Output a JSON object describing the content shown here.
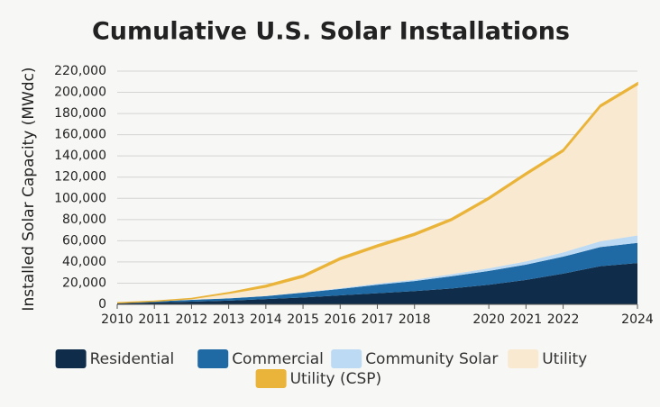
{
  "chart_data": {
    "type": "stacked_area",
    "title": "Cumulative U.S. Solar Installations",
    "y_label": "Installed Solar Capacity (MWdc)",
    "x": [
      2010,
      2011,
      2012,
      2013,
      2014,
      2015,
      2016,
      2017,
      2018,
      2019,
      2020,
      2021,
      2022,
      2023,
      2024
    ],
    "xlim": [
      2010,
      2024
    ],
    "xticks": [
      2010,
      2011,
      2012,
      2013,
      2014,
      2015,
      2016,
      2017,
      2018,
      2020,
      2021,
      2022,
      2024
    ],
    "ylim": [
      0,
      220000
    ],
    "yticks": [
      0,
      {
        "value": 20000,
        "label": "20,000"
      },
      {
        "value": 40000,
        "label": "40,000"
      },
      {
        "value": 60000,
        "label": "60,000"
      },
      {
        "value": 80000,
        "label": "80,000"
      },
      {
        "value": 100000,
        "label": "100,000"
      },
      {
        "value": 120000,
        "label": "120,000"
      },
      {
        "value": 140000,
        "label": "140,000"
      },
      {
        "value": 160000,
        "label": "160,000"
      },
      {
        "value": 180000,
        "label": "180,000"
      },
      {
        "value": 200000,
        "label": "200,000"
      },
      {
        "value": 220000,
        "label": "220,000"
      }
    ],
    "grid": true,
    "series": [
      {
        "name": "Residential",
        "color": "#0f2d4a",
        "values": [
          1000,
          1800,
          2500,
          3500,
          5000,
          6500,
          8500,
          10500,
          12500,
          15000,
          18500,
          23000,
          29000,
          36000,
          39000
        ]
      },
      {
        "name": "Commercial",
        "color": "#1f6aa5",
        "values": [
          500,
          1000,
          1700,
          2100,
          2800,
          4500,
          6000,
          8000,
          9500,
          11500,
          13000,
          14500,
          16000,
          18000,
          19000
        ]
      },
      {
        "name": "Community Solar",
        "color": "#bcdaf3",
        "values": [
          0,
          0,
          100,
          200,
          200,
          300,
          700,
          1000,
          1300,
          2000,
          2500,
          3000,
          4000,
          5500,
          7000
        ]
      },
      {
        "name": "Utility",
        "color": "#f9e9d0",
        "values": [
          0,
          200,
          1100,
          4700,
          8300,
          14400,
          27000,
          34700,
          41900,
          50700,
          65200,
          81700,
          95200,
          126700,
          142200
        ]
      },
      {
        "name": "Utility (CSP)",
        "color": "#eab43a",
        "values": [
          0,
          0,
          100,
          500,
          1700,
          1800,
          1800,
          1800,
          1800,
          1800,
          1800,
          1800,
          1800,
          1800,
          1800
        ]
      }
    ]
  }
}
